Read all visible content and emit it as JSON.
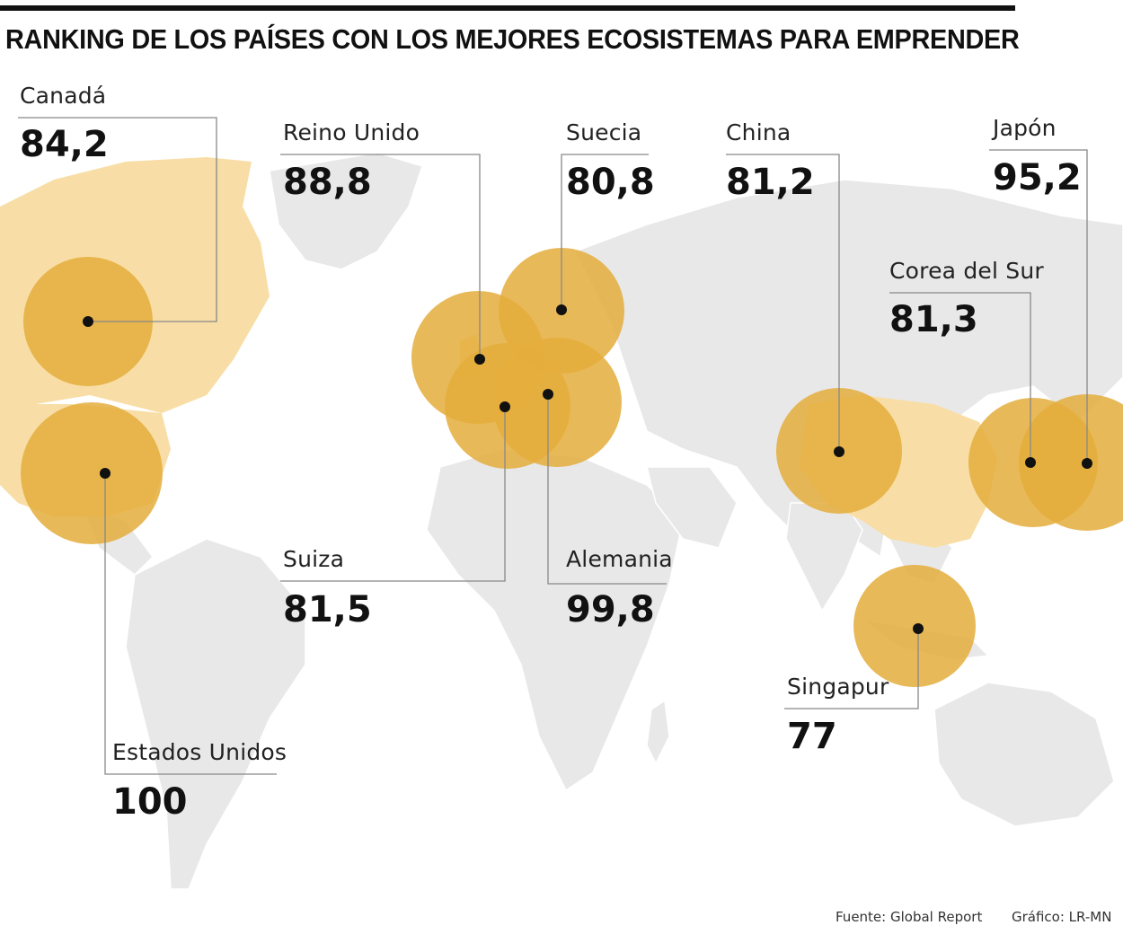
{
  "title": "RANKING DE LOS PAÍSES CON LOS MEJORES ECOSISTEMAS PARA EMPRENDER",
  "colors": {
    "bubble": "#e4ad3c",
    "highlight_land": "#f8dea6",
    "land": "#e8e8e8",
    "line": "#888888"
  },
  "countries": [
    {
      "id": "canada",
      "label": "Canadá",
      "value": "84,2"
    },
    {
      "id": "reino-unido",
      "label": "Reino Unido",
      "value": "88,8"
    },
    {
      "id": "suecia",
      "label": "Suecia",
      "value": "80,8"
    },
    {
      "id": "china",
      "label": "China",
      "value": "81,2"
    },
    {
      "id": "japon",
      "label": "Japón",
      "value": "95,2"
    },
    {
      "id": "corea-del-sur",
      "label": "Corea del Sur",
      "value": "81,3"
    },
    {
      "id": "suiza",
      "label": "Suiza",
      "value": "81,5"
    },
    {
      "id": "alemania",
      "label": "Alemania",
      "value": "99,8"
    },
    {
      "id": "singapur",
      "label": "Singapur",
      "value": "77"
    },
    {
      "id": "estados-unidos",
      "label": "Estados Unidos",
      "value": "100"
    }
  ],
  "footer": {
    "source": "Fuente: Global Report",
    "credit": "Gráfico: LR-MN"
  }
}
